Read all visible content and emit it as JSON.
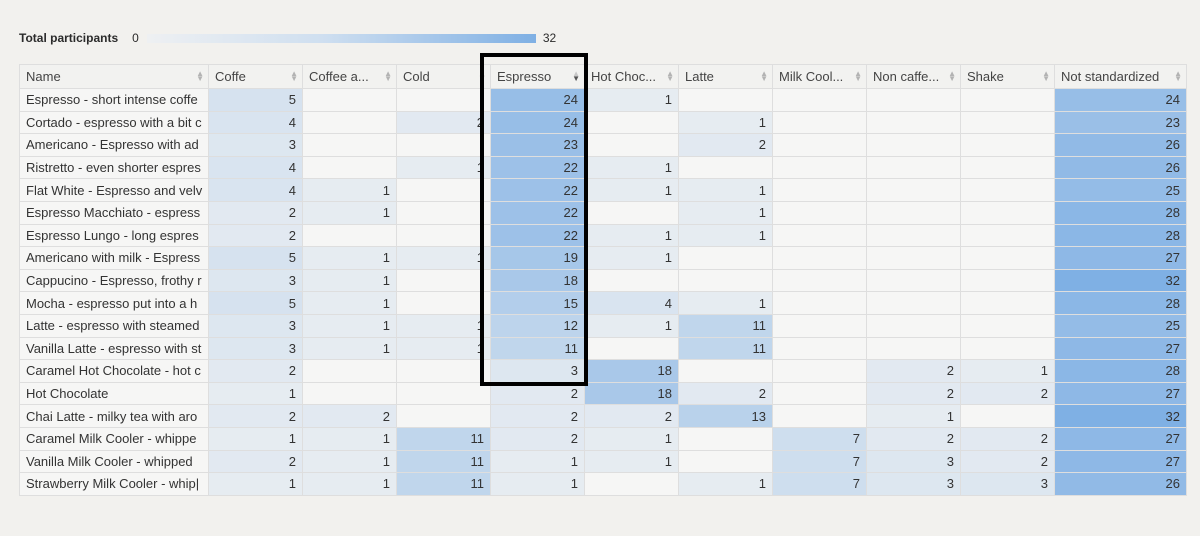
{
  "legend": {
    "title": "Total participants",
    "min": "0",
    "max": "32",
    "color_low": "#eef0f2",
    "color_high": "#7fb0e4"
  },
  "columns": [
    "Name",
    "Coffe",
    "Coffee a...",
    "Cold",
    "Espresso",
    "Hot Choc...",
    "Latte",
    "Milk Cool...",
    "Non caffe...",
    "Shake",
    "Not standardized"
  ],
  "sorted_column": "Espresso",
  "rows": [
    {
      "name": "Espresso - short intense coffe",
      "values": [
        "5",
        "",
        "",
        "24",
        "1",
        "",
        "",
        "",
        "",
        "24"
      ]
    },
    {
      "name": "Cortado - espresso with a bit c",
      "values": [
        "4",
        "",
        "2",
        "24",
        "",
        "1",
        "",
        "",
        "",
        "23"
      ]
    },
    {
      "name": "Americano - Espresso with ad",
      "values": [
        "3",
        "",
        "",
        "23",
        "",
        "2",
        "",
        "",
        "",
        "26"
      ]
    },
    {
      "name": "Ristretto - even shorter espres",
      "values": [
        "4",
        "",
        "1",
        "22",
        "1",
        "",
        "",
        "",
        "",
        "26"
      ]
    },
    {
      "name": "Flat White - Espresso and velv",
      "values": [
        "4",
        "1",
        "",
        "22",
        "1",
        "1",
        "",
        "",
        "",
        "25"
      ]
    },
    {
      "name": "Espresso Macchiato - espress",
      "values": [
        "2",
        "1",
        "",
        "22",
        "",
        "1",
        "",
        "",
        "",
        "28"
      ]
    },
    {
      "name": "Espresso Lungo - long espres",
      "values": [
        "2",
        "",
        "",
        "22",
        "1",
        "1",
        "",
        "",
        "",
        "28"
      ]
    },
    {
      "name": "Americano with milk - Espress",
      "values": [
        "5",
        "1",
        "1",
        "19",
        "1",
        "",
        "",
        "",
        "",
        "27"
      ]
    },
    {
      "name": "Cappucino - Espresso, frothy r",
      "values": [
        "3",
        "1",
        "",
        "18",
        "",
        "",
        "",
        "",
        "",
        "32"
      ]
    },
    {
      "name": "Mocha - espresso put into a h",
      "values": [
        "5",
        "1",
        "",
        "15",
        "4",
        "1",
        "",
        "",
        "",
        "28"
      ]
    },
    {
      "name": "Latte - espresso with steamed",
      "values": [
        "3",
        "1",
        "1",
        "12",
        "1",
        "11",
        "",
        "",
        "",
        "25"
      ]
    },
    {
      "name": "Vanilla Latte - espresso with st",
      "values": [
        "3",
        "1",
        "1",
        "11",
        "",
        "11",
        "",
        "",
        "",
        "27"
      ]
    },
    {
      "name": "Caramel Hot Chocolate - hot c",
      "values": [
        "2",
        "",
        "",
        "3",
        "18",
        "",
        "",
        "2",
        "1",
        "28"
      ]
    },
    {
      "name": "Hot Chocolate",
      "values": [
        "1",
        "",
        "",
        "2",
        "18",
        "2",
        "",
        "2",
        "2",
        "27"
      ]
    },
    {
      "name": "Chai Latte - milky tea with aro",
      "values": [
        "2",
        "2",
        "",
        "2",
        "2",
        "13",
        "",
        "1",
        "",
        "32"
      ]
    },
    {
      "name": "Caramel Milk Cooler - whippe",
      "values": [
        "1",
        "1",
        "11",
        "2",
        "1",
        "",
        "7",
        "2",
        "2",
        "27"
      ]
    },
    {
      "name": "Vanilla Milk Cooler - whipped",
      "values": [
        "2",
        "1",
        "11",
        "1",
        "1",
        "",
        "7",
        "3",
        "2",
        "27"
      ]
    },
    {
      "name": "Strawberry Milk Cooler - whip|",
      "values": [
        "1",
        "1",
        "11",
        "1",
        "",
        "1",
        "7",
        "3",
        "3",
        "26"
      ]
    }
  ]
}
